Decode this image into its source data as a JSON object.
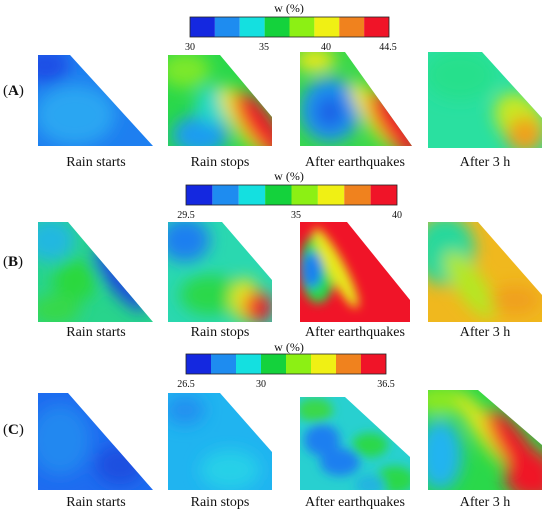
{
  "colorbar_colors": [
    "#1428e0",
    "#1e8cf0",
    "#14e0e0",
    "#14d23c",
    "#8cf014",
    "#f0f014",
    "#f0821e",
    "#f01428"
  ],
  "rows": [
    {
      "label": "A",
      "colorbar": {
        "title": "w (%)",
        "min": "30",
        "ticks": [
          "35",
          "40"
        ],
        "max": "44.5"
      },
      "panels": [
        {
          "caption": "Rain starts"
        },
        {
          "caption": "Rain stops"
        },
        {
          "caption": "After earthquakes"
        },
        {
          "caption": "After 3 h"
        }
      ]
    },
    {
      "label": "B",
      "colorbar": {
        "title": "w (%)",
        "min": "29.5",
        "ticks": [
          "35"
        ],
        "max": "40"
      },
      "panels": [
        {
          "caption": "Rain starts"
        },
        {
          "caption": "Rain stops"
        },
        {
          "caption": "After earthquakes"
        },
        {
          "caption": "After 3 h"
        }
      ]
    },
    {
      "label": "C",
      "colorbar": {
        "title": "w (%)",
        "min": "26.5",
        "ticks": [
          "30"
        ],
        "max": "36.5"
      },
      "panels": [
        {
          "caption": "Rain starts"
        },
        {
          "caption": "Rain stops"
        },
        {
          "caption": "After earthquakes"
        },
        {
          "caption": "After 3 h"
        }
      ]
    }
  ]
}
